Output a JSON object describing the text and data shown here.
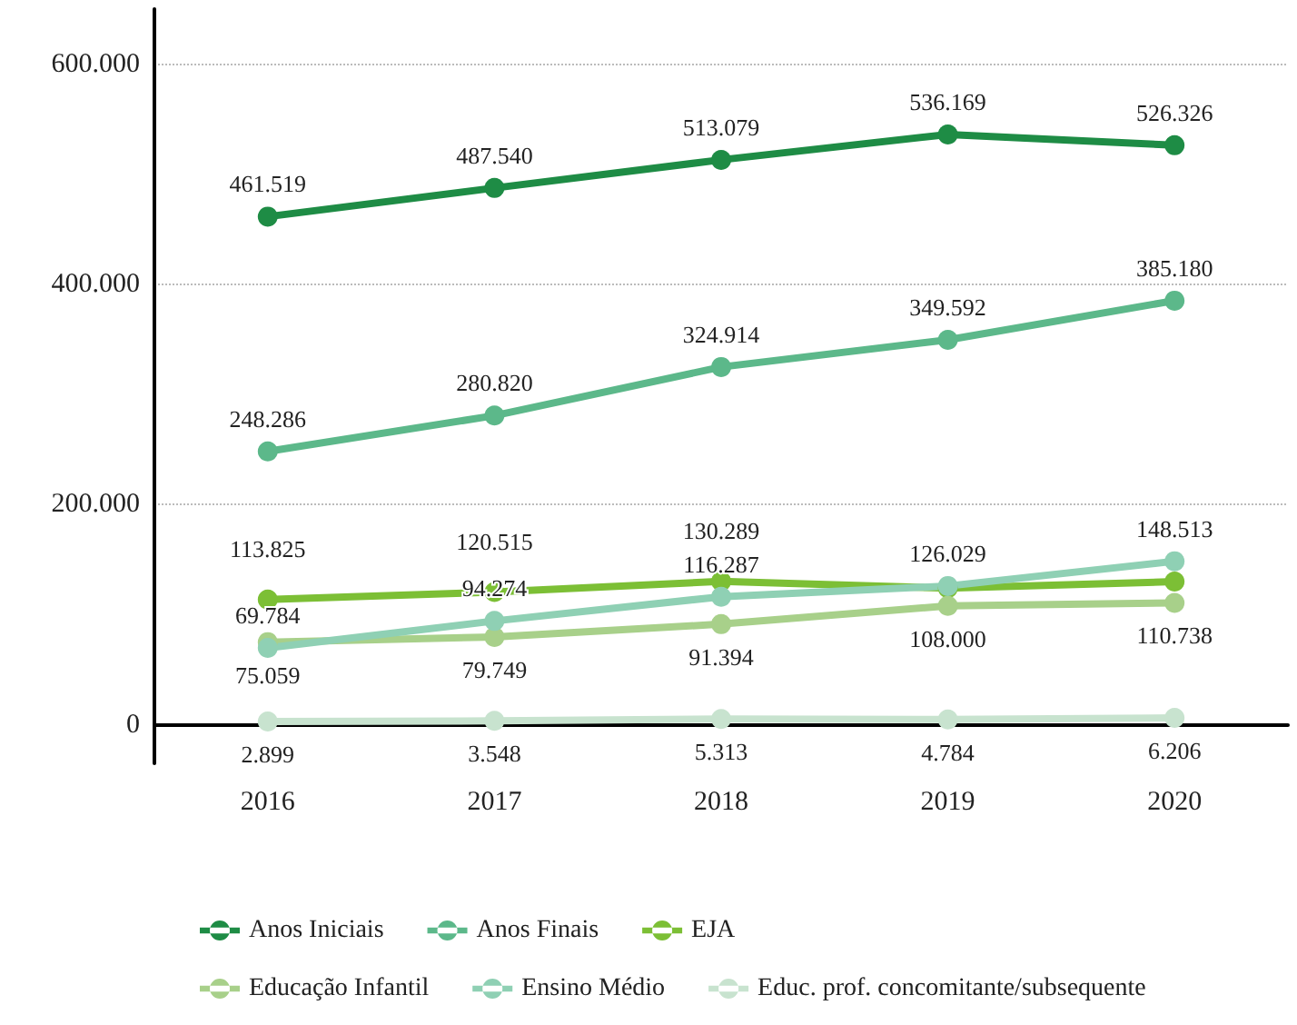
{
  "chart_data": {
    "type": "line",
    "categories": [
      "2016",
      "2017",
      "2018",
      "2019",
      "2020"
    ],
    "series": [
      {
        "name": "Anos Iniciais",
        "color": "#1e8c45",
        "values": [
          461519,
          487540,
          513079,
          536169,
          526326
        ],
        "value_labels": [
          "461.519",
          "487.540",
          "513.079",
          "536.169",
          "526.326"
        ]
      },
      {
        "name": "Anos Finais",
        "color": "#5cb88a",
        "values": [
          248286,
          280820,
          324914,
          349592,
          385180
        ],
        "value_labels": [
          "248.286",
          "280.820",
          "324.914",
          "349.592",
          "385.180"
        ]
      },
      {
        "name": "EJA",
        "color": "#7cbf35",
        "values": [
          113825,
          120515,
          130289,
          124000,
          130000
        ],
        "value_labels": [
          "113.825",
          "120.515",
          "130.289",
          null,
          null
        ]
      },
      {
        "name": "Educação Infantil",
        "color": "#a8d08a",
        "values": [
          75059,
          79749,
          91394,
          108000,
          110738
        ],
        "value_labels": [
          "75.059",
          "79.749",
          "91.394",
          "108.000",
          "110.738"
        ]
      },
      {
        "name": "Ensino Médio",
        "color": "#8fd0b4",
        "values": [
          69784,
          94274,
          116287,
          126029,
          148513
        ],
        "value_labels": [
          "69.784",
          "94.274",
          "116.287",
          "126.029",
          "148.513"
        ]
      },
      {
        "name": "Educ. prof. concomitante/subsequente",
        "color": "#c8e3cf",
        "values": [
          2899,
          3548,
          5313,
          4784,
          6206
        ],
        "value_labels": [
          "2.899",
          "3.548",
          "5.313",
          "4.784",
          "6.206"
        ]
      }
    ],
    "ylim": [
      -35000,
      650000
    ],
    "yticks": [
      {
        "value": 0,
        "label": "0"
      },
      {
        "value": 200000,
        "label": "200.000"
      },
      {
        "value": 400000,
        "label": "400.000"
      },
      {
        "value": 600000,
        "label": "600.000"
      }
    ],
    "grid": "y",
    "legend": "bottom",
    "marker": "circle",
    "line_style": "solid"
  }
}
